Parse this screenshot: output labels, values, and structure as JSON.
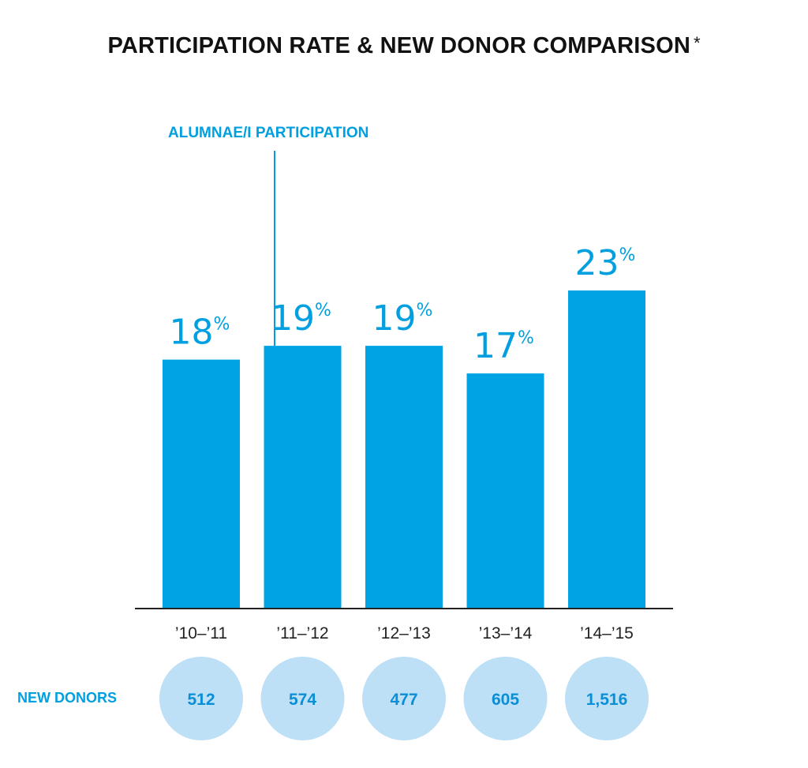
{
  "chart_data": {
    "type": "bar",
    "title": "PARTICIPATION RATE & NEW DONOR COMPARISON",
    "title_mark": "*",
    "categories": [
      "’10–’11",
      "’11–’12",
      "’12–’13",
      "’13–’14",
      "’14–’15"
    ],
    "series": [
      {
        "name": "ALUMNAE/I PARTICIPATION",
        "values": [
          18,
          19,
          19,
          17,
          23
        ],
        "unit": "%"
      }
    ],
    "ylim": [
      0,
      23
    ],
    "grid": false,
    "colors": {
      "bar": "#00a3e4",
      "label": "#009fe0",
      "donor_circle": "#bde0f7",
      "donor_text": "#0a8fd6",
      "axis": "#222222"
    },
    "new_donors": {
      "label": "NEW DONORS",
      "values": [
        "512",
        "574",
        "477",
        "605",
        "1,516"
      ]
    }
  }
}
